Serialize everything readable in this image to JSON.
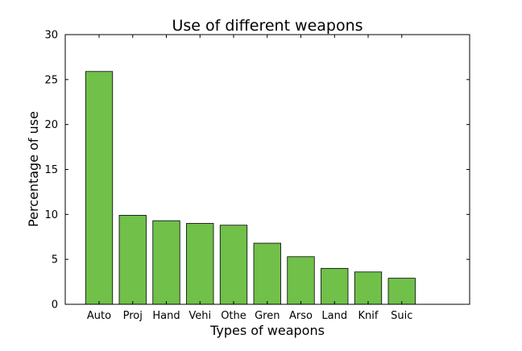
{
  "chart_data": {
    "type": "bar",
    "title": "Use of different weapons",
    "xlabel": "Types of weapons",
    "ylabel": "Percentage of use",
    "categories": [
      "Auto",
      "Proj",
      "Hand",
      "Vehi",
      "Othe",
      "Gren",
      "Arso",
      "Land",
      "Knif",
      "Suic"
    ],
    "values": [
      25.9,
      9.9,
      9.3,
      9.0,
      8.8,
      6.8,
      5.3,
      4.0,
      3.6,
      2.9
    ],
    "ylim": [
      0,
      30
    ],
    "yticks": [
      "0",
      "5",
      "10",
      "15",
      "20",
      "25",
      "30"
    ],
    "grid": false,
    "bar_color": "#70c04a",
    "edge_color": "#000000"
  }
}
